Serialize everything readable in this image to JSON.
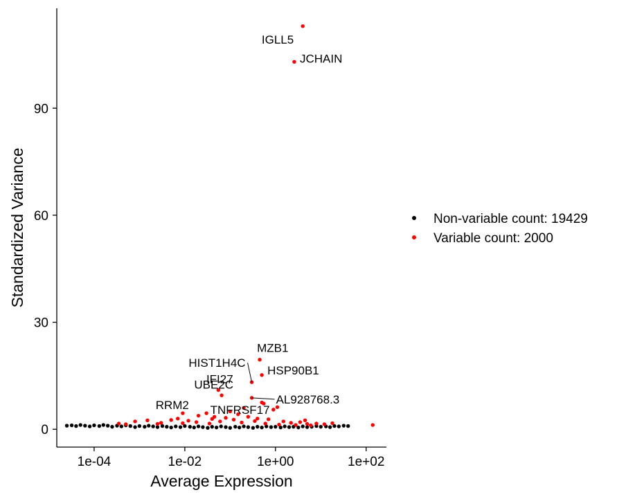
{
  "chart_data": {
    "type": "scatter",
    "title": "",
    "xlabel": "Average Expression",
    "ylabel": "Standardized Variance",
    "x_scale": "log10",
    "xlim": [
      1.5e-05,
      280
    ],
    "ylim": [
      -5,
      118
    ],
    "x_ticks": [
      {
        "value": 0.0001,
        "label": "1e-04"
      },
      {
        "value": 0.01,
        "label": "1e-02"
      },
      {
        "value": 1,
        "label": "1e+00"
      },
      {
        "value": 100,
        "label": "1e+02"
      }
    ],
    "y_ticks": [
      {
        "value": 0,
        "label": "0"
      },
      {
        "value": 30,
        "label": "30"
      },
      {
        "value": 60,
        "label": "60"
      },
      {
        "value": 90,
        "label": "90"
      }
    ],
    "grid": false,
    "legend_position": "right",
    "series": [
      {
        "name": "Non-variable count: 19429",
        "color": "#000000",
        "points": [
          [
            2.5e-05,
            1.0
          ],
          [
            3.2e-05,
            1.1
          ],
          [
            4e-05,
            0.9
          ],
          [
            5e-05,
            1.2
          ],
          [
            6.3e-05,
            1.0
          ],
          [
            8e-05,
            0.8
          ],
          [
            0.0001,
            1.1
          ],
          [
            0.00013,
            0.9
          ],
          [
            0.00016,
            1.2
          ],
          [
            0.0002,
            1.0
          ],
          [
            0.00025,
            0.7
          ],
          [
            0.00032,
            1.0
          ],
          [
            0.0004,
            0.8
          ],
          [
            0.0005,
            1.1
          ],
          [
            0.00063,
            0.9
          ],
          [
            0.0008,
            0.6
          ],
          [
            0.001,
            0.9
          ],
          [
            0.0013,
            0.7
          ],
          [
            0.0016,
            1.0
          ],
          [
            0.002,
            0.8
          ],
          [
            0.0025,
            0.6
          ],
          [
            0.0032,
            0.9
          ],
          [
            0.004,
            0.7
          ],
          [
            0.005,
            0.5
          ],
          [
            0.0063,
            0.8
          ],
          [
            0.008,
            0.6
          ],
          [
            0.01,
            0.9
          ],
          [
            0.013,
            0.7
          ],
          [
            0.016,
            0.5
          ],
          [
            0.02,
            0.8
          ],
          [
            0.025,
            0.6
          ],
          [
            0.032,
            0.4
          ],
          [
            0.04,
            0.7
          ],
          [
            0.05,
            0.5
          ],
          [
            0.063,
            0.8
          ],
          [
            0.08,
            0.6
          ],
          [
            0.1,
            0.4
          ],
          [
            0.13,
            0.7
          ],
          [
            0.16,
            0.5
          ],
          [
            0.2,
            0.8
          ],
          [
            0.25,
            0.6
          ],
          [
            0.32,
            0.4
          ],
          [
            0.4,
            0.7
          ],
          [
            0.5,
            0.5
          ],
          [
            0.63,
            0.8
          ],
          [
            0.8,
            0.6
          ],
          [
            1.0,
            0.7
          ],
          [
            1.3,
            0.5
          ],
          [
            1.6,
            0.8
          ],
          [
            2.0,
            0.6
          ],
          [
            2.5,
            0.7
          ],
          [
            3.2,
            0.5
          ],
          [
            4.0,
            0.8
          ],
          [
            5.0,
            0.6
          ],
          [
            6.3,
            0.7
          ],
          [
            8.0,
            0.9
          ],
          [
            10,
            0.7
          ],
          [
            13,
            0.8
          ],
          [
            16,
            0.6
          ],
          [
            20,
            0.9
          ],
          [
            25,
            0.8
          ],
          [
            32,
            1.0
          ],
          [
            40,
            0.9
          ]
        ]
      },
      {
        "name": "Variable count: 2000",
        "color": "#ff0000",
        "points": [
          [
            4.0,
            113
          ],
          [
            2.6,
            103
          ],
          [
            0.45,
            19.5
          ],
          [
            0.3,
            13.2
          ],
          [
            0.5,
            15.2
          ],
          [
            0.065,
            9.5
          ],
          [
            0.055,
            11.0
          ],
          [
            0.3,
            8.8
          ],
          [
            0.5,
            7.5
          ],
          [
            0.55,
            7.2
          ],
          [
            0.9,
            5.5
          ],
          [
            1.1,
            6.2
          ],
          [
            0.2,
            6.0
          ],
          [
            0.1,
            5.0
          ],
          [
            0.03,
            4.5
          ],
          [
            0.02,
            3.8
          ],
          [
            0.08,
            3.2
          ],
          [
            0.15,
            4.2
          ],
          [
            0.25,
            3.5
          ],
          [
            0.4,
            3.0
          ],
          [
            0.7,
            2.8
          ],
          [
            1.5,
            2.2
          ],
          [
            2.2,
            1.8
          ],
          [
            3.5,
            2.0
          ],
          [
            5.0,
            1.5
          ],
          [
            8.0,
            1.6
          ],
          [
            12,
            1.4
          ],
          [
            18,
            1.7
          ],
          [
            140,
            1.2
          ],
          [
            0.0008,
            2.2
          ],
          [
            0.0015,
            2.5
          ],
          [
            0.003,
            1.8
          ],
          [
            0.005,
            2.6
          ],
          [
            0.007,
            3.0
          ],
          [
            0.012,
            2.4
          ],
          [
            0.018,
            2.0
          ],
          [
            0.04,
            2.9
          ],
          [
            0.06,
            2.2
          ],
          [
            0.12,
            2.7
          ],
          [
            0.18,
            1.9
          ],
          [
            0.6,
            1.6
          ],
          [
            1.2,
            1.3
          ],
          [
            2.8,
            1.2
          ],
          [
            6.0,
            1.1
          ],
          [
            0.00035,
            1.6
          ],
          [
            0.0005,
            1.4
          ],
          [
            0.0025,
            1.5
          ],
          [
            0.009,
            1.7
          ],
          [
            0.035,
            1.6
          ],
          [
            0.35,
            2.3
          ],
          [
            0.009,
            4.5
          ],
          [
            0.045,
            3.5
          ],
          [
            4.5,
            2.5
          ]
        ]
      }
    ],
    "annotations": [
      {
        "text": "IGLL5",
        "x": 4.0,
        "y": 113
      },
      {
        "text": "JCHAIN",
        "x": 2.6,
        "y": 103
      },
      {
        "text": "MZB1",
        "x": 0.45,
        "y": 19.5
      },
      {
        "text": "HIST1H4C",
        "x": 0.3,
        "y": 13.2
      },
      {
        "text": "HSP90B1",
        "x": 0.5,
        "y": 15.2
      },
      {
        "text": "UBE2C",
        "x": 0.065,
        "y": 9.5
      },
      {
        "text": "IFI27",
        "x": 0.055,
        "y": 11.0
      },
      {
        "text": "AL928768.3",
        "x": 0.3,
        "y": 8.8
      },
      {
        "text": "RRM2",
        "x": 0.009,
        "y": 4.5
      },
      {
        "text": "TNFRSF17",
        "x": 0.045,
        "y": 3.5
      }
    ]
  }
}
